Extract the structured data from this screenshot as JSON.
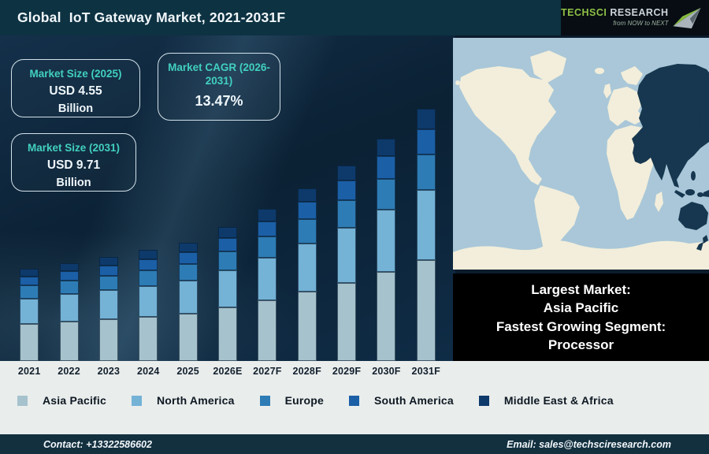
{
  "header": {
    "title": "Global  IoT Gateway Market, 2021-2031F"
  },
  "logo": {
    "brand_primary": "TECHSCI",
    "brand_secondary": "RESEARCH",
    "tagline": "from NOW to NEXT",
    "green": "#8fc045"
  },
  "stat_boxes": {
    "size_2025": {
      "label": "Market Size (2025)",
      "value": "USD 4.55",
      "unit": "Billion"
    },
    "cagr": {
      "label": "Market CAGR (2026-2031)",
      "value": "13.47%"
    },
    "size_2031": {
      "label": "Market Size (2031)",
      "value": "USD 9.71",
      "unit": "Billion"
    }
  },
  "info_box": {
    "line1": "Largest Market:",
    "line2": "Asia Pacific",
    "line3": "Fastest Growing Segment:",
    "line4": "Processor"
  },
  "map": {
    "colors": {
      "ocean": "#a9c7d8",
      "land": "#f2eedb",
      "highlight": "#16374f"
    },
    "highlighted_region": "Asia Pacific"
  },
  "footer": {
    "contact": "Contact: +13322586602",
    "email": "Email: sales@techsciresearch.com"
  },
  "chart_data": {
    "type": "bar",
    "stacked": true,
    "title": "Global IoT Gateway Market, 2021-2031F",
    "unit": "USD Billion",
    "grid": false,
    "legend_position": "bottom",
    "ylim": [
      0,
      10
    ],
    "categories": [
      "2021",
      "2022",
      "2023",
      "2024",
      "2025",
      "2026E",
      "2027F",
      "2028F",
      "2029F",
      "2030F",
      "2031F"
    ],
    "totals": [
      3.54,
      3.77,
      4.01,
      4.27,
      4.55,
      5.16,
      5.86,
      6.65,
      7.54,
      8.56,
      9.71
    ],
    "series": [
      {
        "name": "Asia Pacific",
        "color": "#a6c2cd",
        "values": [
          1.42,
          1.51,
          1.6,
          1.7,
          1.82,
          2.06,
          2.34,
          2.66,
          3.02,
          3.42,
          3.88
        ]
      },
      {
        "name": "North America",
        "color": "#74b2d6",
        "values": [
          0.99,
          1.06,
          1.12,
          1.2,
          1.27,
          1.44,
          1.64,
          1.86,
          2.11,
          2.4,
          2.72
        ]
      },
      {
        "name": "Europe",
        "color": "#2e7cb5",
        "values": [
          0.5,
          0.53,
          0.56,
          0.6,
          0.64,
          0.72,
          0.82,
          0.93,
          1.06,
          1.2,
          1.36
        ]
      },
      {
        "name": "South America",
        "color": "#1b5fa6",
        "values": [
          0.35,
          0.37,
          0.4,
          0.43,
          0.46,
          0.52,
          0.59,
          0.67,
          0.75,
          0.86,
          0.97
        ]
      },
      {
        "name": "Middle East & Africa",
        "color": "#0d3a6b",
        "values": [
          0.28,
          0.3,
          0.33,
          0.34,
          0.36,
          0.42,
          0.47,
          0.53,
          0.6,
          0.68,
          0.78
        ]
      }
    ],
    "annotations": {
      "market_size_2025": "USD 4.55 Billion",
      "market_size_2031": "USD 9.71 Billion",
      "cagr_2026_2031": "13.47%"
    }
  }
}
